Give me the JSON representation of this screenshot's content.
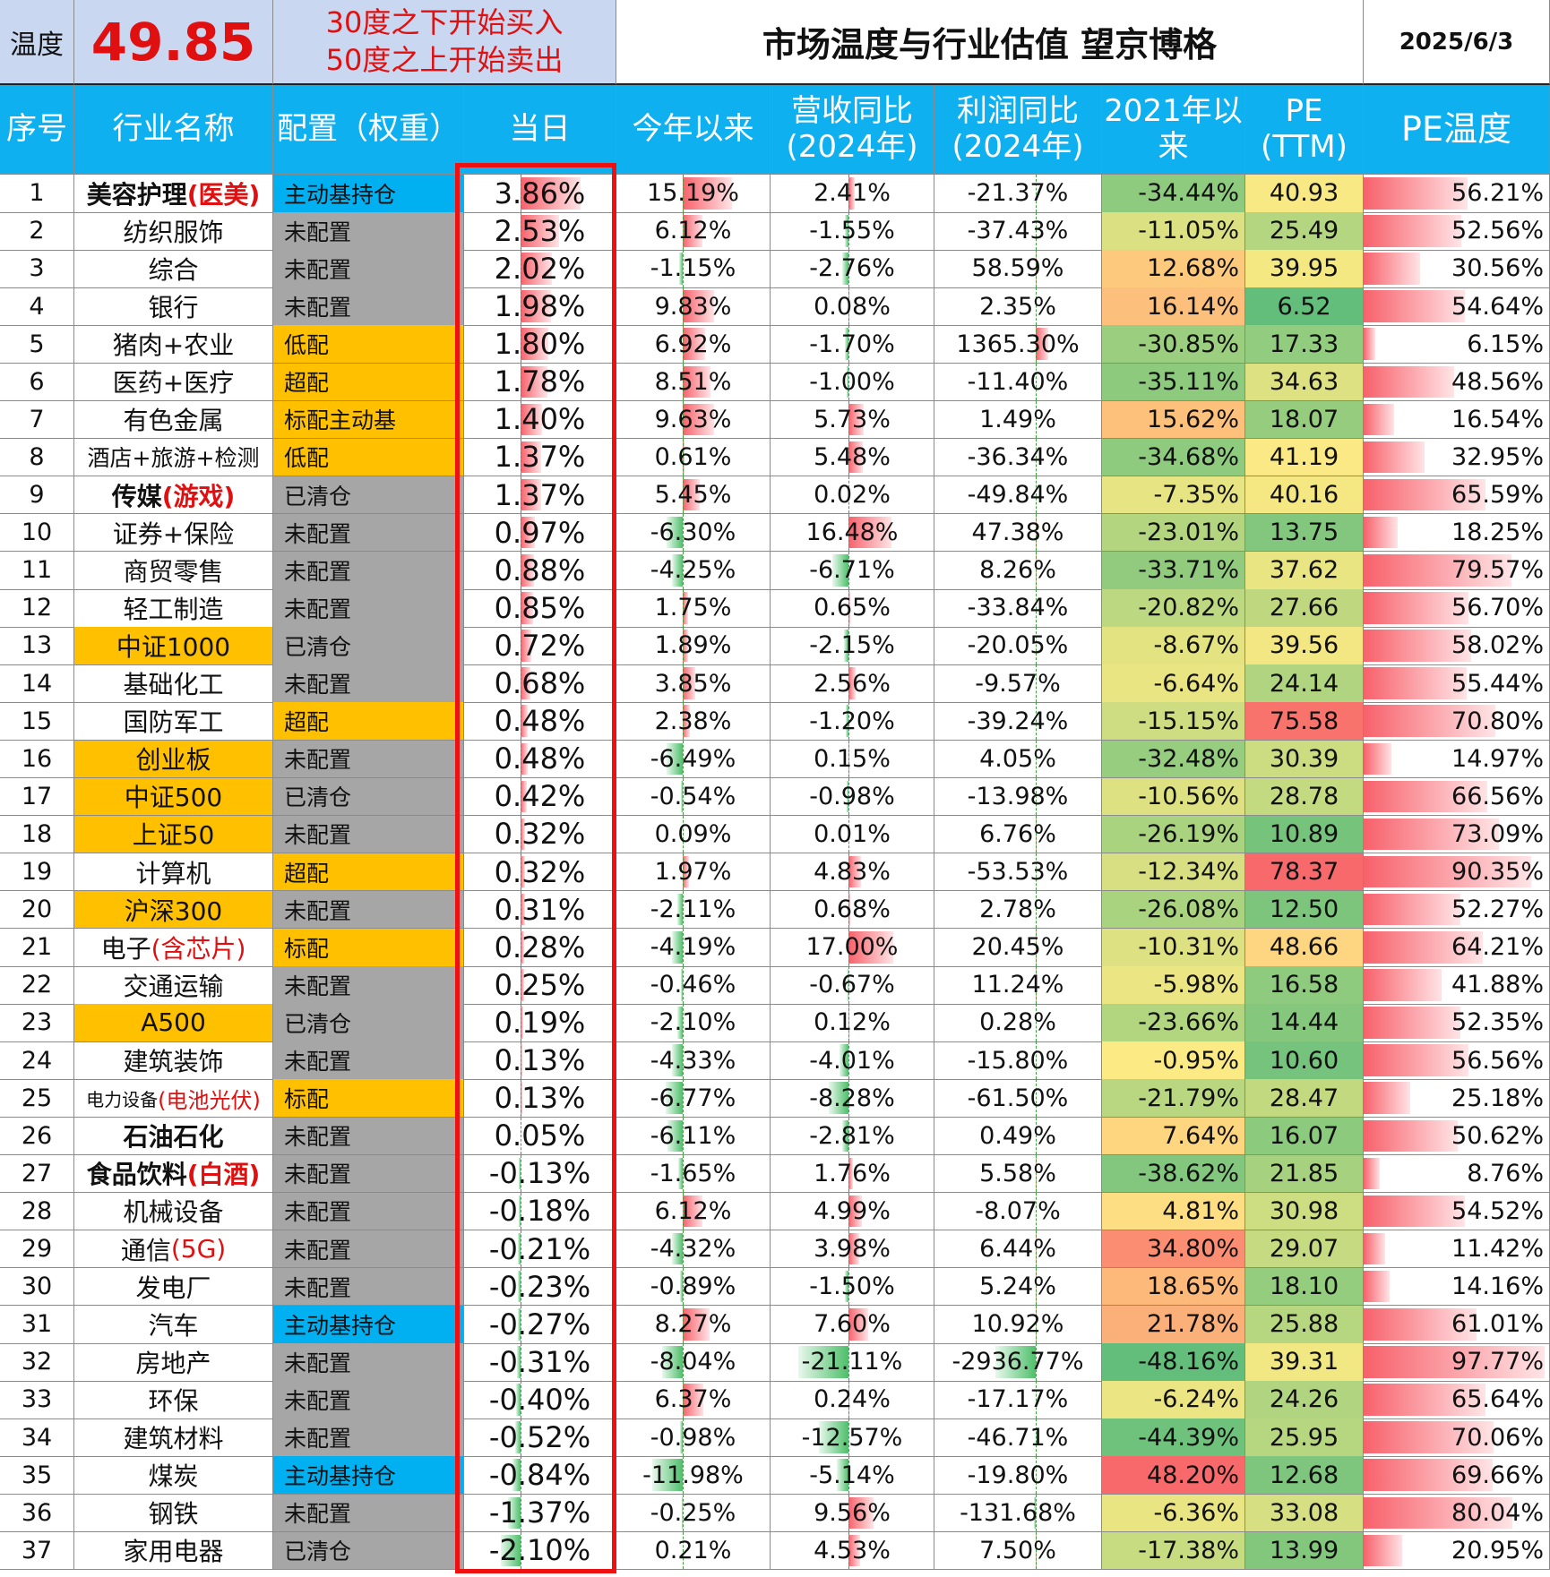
{
  "header": {
    "temp_label": "温度",
    "temp_value": "49.85",
    "rule_line1": "30度之下开始买入",
    "rule_line2": "50度之上开始卖出",
    "title": "市场温度与行业估值 望京博格",
    "date": "2025/6/3"
  },
  "columns": {
    "no": "序号",
    "name": "行业名称",
    "alloc": "配置（权重）",
    "day": "当日",
    "ytd": "今年以来",
    "rev_1": "营收同比",
    "rev_2": "(2024年)",
    "profit_1": "利润同比",
    "profit_2": "(2024年)",
    "since21_1": "2021年以",
    "since21_2": "来",
    "pe_1": "PE",
    "pe_2": "(TTM)",
    "petemp": "PE温度"
  },
  "colors": {
    "header_bg": "#0fb0f0",
    "highlight_bg": "#ffc000",
    "grey_bg": "#a6a6a6",
    "blue_bg": "#00b0f0",
    "temp_red": "#e01010",
    "frame_red": "#ee1111"
  },
  "rows": [
    {
      "no": "1",
      "name": "美容护理",
      "name_hl": "(医美)",
      "alloc": "主动基持仓",
      "alloc_c": "blue",
      "name_c": "",
      "day": "3.86%",
      "ytd": "15.19%",
      "rev": "2.41%",
      "profit": "-21.37%",
      "since21": "-34.44%",
      "pe": "40.93",
      "pet": "56.21%"
    },
    {
      "no": "2",
      "name": "纺织服饰",
      "name_hl": "",
      "alloc": "未配置",
      "alloc_c": "grey",
      "name_c": "",
      "day": "2.53%",
      "ytd": "6.12%",
      "rev": "-1.55%",
      "profit": "-37.43%",
      "since21": "-11.05%",
      "pe": "25.49",
      "pet": "52.56%"
    },
    {
      "no": "3",
      "name": "综合",
      "name_hl": "",
      "alloc": "未配置",
      "alloc_c": "grey",
      "name_c": "",
      "day": "2.02%",
      "ytd": "-1.15%",
      "rev": "-2.76%",
      "profit": "58.59%",
      "since21": "12.68%",
      "pe": "39.95",
      "pet": "30.56%"
    },
    {
      "no": "4",
      "name": "银行",
      "name_hl": "",
      "alloc": "未配置",
      "alloc_c": "grey",
      "name_c": "",
      "day": "1.98%",
      "ytd": "9.83%",
      "rev": "0.08%",
      "profit": "2.35%",
      "since21": "16.14%",
      "pe": "6.52",
      "pet": "54.64%"
    },
    {
      "no": "5",
      "name": "猪肉+农业",
      "name_hl": "",
      "alloc": "低配",
      "alloc_c": "yellow",
      "name_c": "",
      "day": "1.80%",
      "ytd": "6.92%",
      "rev": "-1.70%",
      "profit": "1365.30%",
      "since21": "-30.85%",
      "pe": "17.33",
      "pet": "6.15%"
    },
    {
      "no": "6",
      "name": "医药+医疗",
      "name_hl": "",
      "alloc": "超配",
      "alloc_c": "yellow",
      "name_c": "",
      "day": "1.78%",
      "ytd": "8.51%",
      "rev": "-1.00%",
      "profit": "-11.40%",
      "since21": "-35.11%",
      "pe": "34.63",
      "pet": "48.56%"
    },
    {
      "no": "7",
      "name": "有色金属",
      "name_hl": "",
      "alloc": "标配主动基",
      "alloc_c": "yellow",
      "name_c": "",
      "day": "1.40%",
      "ytd": "9.63%",
      "rev": "5.73%",
      "profit": "1.49%",
      "since21": "15.62%",
      "pe": "18.07",
      "pet": "16.54%"
    },
    {
      "no": "8",
      "name": "酒店+旅游+检测",
      "name_hl": "",
      "alloc": "低配",
      "alloc_c": "yellow",
      "name_c": "",
      "day": "1.37%",
      "ytd": "0.61%",
      "rev": "5.48%",
      "profit": "-36.34%",
      "since21": "-34.68%",
      "pe": "41.19",
      "pet": "32.95%"
    },
    {
      "no": "9",
      "name": "传媒",
      "name_hl": "(游戏)",
      "alloc": "已清仓",
      "alloc_c": "grey",
      "name_c": "",
      "day": "1.37%",
      "ytd": "5.45%",
      "rev": "0.02%",
      "profit": "-49.84%",
      "since21": "-7.35%",
      "pe": "40.16",
      "pet": "65.59%"
    },
    {
      "no": "10",
      "name": "证券+保险",
      "name_hl": "",
      "alloc": "未配置",
      "alloc_c": "grey",
      "name_c": "",
      "day": "0.97%",
      "ytd": "-6.30%",
      "rev": "16.48%",
      "profit": "47.38%",
      "since21": "-23.01%",
      "pe": "13.75",
      "pet": "18.25%"
    },
    {
      "no": "11",
      "name": "商贸零售",
      "name_hl": "",
      "alloc": "未配置",
      "alloc_c": "grey",
      "name_c": "",
      "day": "0.88%",
      "ytd": "-4.25%",
      "rev": "-6.71%",
      "profit": "8.26%",
      "since21": "-33.71%",
      "pe": "37.62",
      "pet": "79.57%"
    },
    {
      "no": "12",
      "name": "轻工制造",
      "name_hl": "",
      "alloc": "未配置",
      "alloc_c": "grey",
      "name_c": "",
      "day": "0.85%",
      "ytd": "1.75%",
      "rev": "0.65%",
      "profit": "-33.84%",
      "since21": "-20.82%",
      "pe": "27.66",
      "pet": "56.70%"
    },
    {
      "no": "13",
      "name": "中证1000",
      "name_hl": "",
      "alloc": "已清仓",
      "alloc_c": "grey",
      "name_c": "yellow",
      "day": "0.72%",
      "ytd": "1.89%",
      "rev": "-2.15%",
      "profit": "-20.05%",
      "since21": "-8.67%",
      "pe": "39.56",
      "pet": "58.02%"
    },
    {
      "no": "14",
      "name": "基础化工",
      "name_hl": "",
      "alloc": "未配置",
      "alloc_c": "grey",
      "name_c": "",
      "day": "0.68%",
      "ytd": "3.85%",
      "rev": "2.56%",
      "profit": "-9.57%",
      "since21": "-6.64%",
      "pe": "24.14",
      "pet": "55.44%"
    },
    {
      "no": "15",
      "name": "国防军工",
      "name_hl": "",
      "alloc": "超配",
      "alloc_c": "yellow",
      "name_c": "",
      "day": "0.48%",
      "ytd": "2.38%",
      "rev": "-1.20%",
      "profit": "-39.24%",
      "since21": "-15.15%",
      "pe": "75.58",
      "pet": "70.80%"
    },
    {
      "no": "16",
      "name": "创业板",
      "name_hl": "",
      "alloc": "未配置",
      "alloc_c": "grey",
      "name_c": "yellow",
      "day": "0.48%",
      "ytd": "-6.49%",
      "rev": "0.15%",
      "profit": "4.05%",
      "since21": "-32.48%",
      "pe": "30.39",
      "pet": "14.97%"
    },
    {
      "no": "17",
      "name": "中证500",
      "name_hl": "",
      "alloc": "已清仓",
      "alloc_c": "grey",
      "name_c": "yellow",
      "day": "0.42%",
      "ytd": "-0.54%",
      "rev": "-0.98%",
      "profit": "-13.98%",
      "since21": "-10.56%",
      "pe": "28.78",
      "pet": "66.56%"
    },
    {
      "no": "18",
      "name": "上证50",
      "name_hl": "",
      "alloc": "未配置",
      "alloc_c": "grey",
      "name_c": "yellow",
      "day": "0.32%",
      "ytd": "0.09%",
      "rev": "0.01%",
      "profit": "6.76%",
      "since21": "-26.19%",
      "pe": "10.89",
      "pet": "73.09%"
    },
    {
      "no": "19",
      "name": "计算机",
      "name_hl": "",
      "alloc": "超配",
      "alloc_c": "yellow",
      "name_c": "",
      "day": "0.32%",
      "ytd": "1.97%",
      "rev": "4.83%",
      "profit": "-53.53%",
      "since21": "-12.34%",
      "pe": "78.37",
      "pet": "90.35%"
    },
    {
      "no": "20",
      "name": "沪深300",
      "name_hl": "",
      "alloc": "未配置",
      "alloc_c": "grey",
      "name_c": "yellow",
      "day": "0.31%",
      "ytd": "-2.11%",
      "rev": "0.68%",
      "profit": "2.78%",
      "since21": "-26.08%",
      "pe": "12.50",
      "pet": "52.27%"
    },
    {
      "no": "21",
      "name": "电子",
      "name_hl": "(含芯片)",
      "alloc": "标配",
      "alloc_c": "yellow",
      "name_c": "",
      "day": "0.28%",
      "ytd": "-4.19%",
      "rev": "17.00%",
      "profit": "20.45%",
      "since21": "-10.31%",
      "pe": "48.66",
      "pet": "64.21%"
    },
    {
      "no": "22",
      "name": "交通运输",
      "name_hl": "",
      "alloc": "未配置",
      "alloc_c": "grey",
      "name_c": "",
      "day": "0.25%",
      "ytd": "-0.46%",
      "rev": "-0.67%",
      "profit": "11.24%",
      "since21": "-5.98%",
      "pe": "16.58",
      "pet": "41.88%"
    },
    {
      "no": "23",
      "name": "A500",
      "name_hl": "",
      "alloc": "已清仓",
      "alloc_c": "grey",
      "name_c": "yellow",
      "day": "0.19%",
      "ytd": "-2.10%",
      "rev": "0.12%",
      "profit": "0.28%",
      "since21": "-23.66%",
      "pe": "14.44",
      "pet": "52.35%"
    },
    {
      "no": "24",
      "name": "建筑装饰",
      "name_hl": "",
      "alloc": "未配置",
      "alloc_c": "grey",
      "name_c": "",
      "day": "0.13%",
      "ytd": "-4.33%",
      "rev": "-4.01%",
      "profit": "-15.80%",
      "since21": "-0.95%",
      "pe": "10.60",
      "pet": "56.56%"
    },
    {
      "no": "25",
      "name": "电力设备",
      "name_hl": "(电池光伏)",
      "alloc": "标配",
      "alloc_c": "yellow",
      "name_c": "",
      "day": "0.13%",
      "ytd": "-6.77%",
      "rev": "-8.28%",
      "profit": "-61.50%",
      "since21": "-21.79%",
      "pe": "28.47",
      "pet": "25.18%"
    },
    {
      "no": "26",
      "name": "石油石化",
      "name_hl": "",
      "alloc": "未配置",
      "alloc_c": "grey",
      "name_c": "",
      "day": "0.05%",
      "ytd": "-6.11%",
      "rev": "-2.81%",
      "profit": "0.49%",
      "since21": "7.64%",
      "pe": "16.07",
      "pet": "50.62%"
    },
    {
      "no": "27",
      "name": "食品饮料",
      "name_hl": "(白酒)",
      "alloc": "未配置",
      "alloc_c": "grey",
      "name_c": "",
      "day": "-0.13%",
      "ytd": "-1.65%",
      "rev": "1.76%",
      "profit": "5.58%",
      "since21": "-38.62%",
      "pe": "21.85",
      "pet": "8.76%"
    },
    {
      "no": "28",
      "name": "机械设备",
      "name_hl": "",
      "alloc": "未配置",
      "alloc_c": "grey",
      "name_c": "",
      "day": "-0.18%",
      "ytd": "6.12%",
      "rev": "4.99%",
      "profit": "-8.07%",
      "since21": "4.81%",
      "pe": "30.98",
      "pet": "54.52%"
    },
    {
      "no": "29",
      "name": "通信",
      "name_hl": "(5G)",
      "alloc": "未配置",
      "alloc_c": "grey",
      "name_c": "",
      "day": "-0.21%",
      "ytd": "-4.32%",
      "rev": "3.98%",
      "profit": "6.44%",
      "since21": "34.80%",
      "pe": "29.07",
      "pet": "11.42%"
    },
    {
      "no": "30",
      "name": "发电厂",
      "name_hl": "",
      "alloc": "未配置",
      "alloc_c": "grey",
      "name_c": "",
      "day": "-0.23%",
      "ytd": "-0.89%",
      "rev": "-1.50%",
      "profit": "5.24%",
      "since21": "18.65%",
      "pe": "18.10",
      "pet": "14.16%"
    },
    {
      "no": "31",
      "name": "汽车",
      "name_hl": "",
      "alloc": "主动基持仓",
      "alloc_c": "blue",
      "name_c": "",
      "day": "-0.27%",
      "ytd": "8.27%",
      "rev": "7.60%",
      "profit": "10.92%",
      "since21": "21.78%",
      "pe": "25.88",
      "pet": "61.01%"
    },
    {
      "no": "32",
      "name": "房地产",
      "name_hl": "",
      "alloc": "未配置",
      "alloc_c": "grey",
      "name_c": "",
      "day": "-0.31%",
      "ytd": "-8.04%",
      "rev": "-21.11%",
      "profit": "-2936.77%",
      "since21": "-48.16%",
      "pe": "39.31",
      "pet": "97.77%"
    },
    {
      "no": "33",
      "name": "环保",
      "name_hl": "",
      "alloc": "未配置",
      "alloc_c": "grey",
      "name_c": "",
      "day": "-0.40%",
      "ytd": "6.37%",
      "rev": "0.24%",
      "profit": "-17.17%",
      "since21": "-6.24%",
      "pe": "24.26",
      "pet": "65.64%"
    },
    {
      "no": "34",
      "name": "建筑材料",
      "name_hl": "",
      "alloc": "未配置",
      "alloc_c": "grey",
      "name_c": "",
      "day": "-0.52%",
      "ytd": "-0.98%",
      "rev": "-12.57%",
      "profit": "-46.71%",
      "since21": "-44.39%",
      "pe": "25.95",
      "pet": "70.06%"
    },
    {
      "no": "35",
      "name": "煤炭",
      "name_hl": "",
      "alloc": "主动基持仓",
      "alloc_c": "blue",
      "name_c": "",
      "day": "-0.84%",
      "ytd": "-11.98%",
      "rev": "-5.14%",
      "profit": "-19.80%",
      "since21": "48.20%",
      "pe": "12.68",
      "pet": "69.66%"
    },
    {
      "no": "36",
      "name": "钢铁",
      "name_hl": "",
      "alloc": "未配置",
      "alloc_c": "grey",
      "name_c": "",
      "day": "-1.37%",
      "ytd": "-0.25%",
      "rev": "9.56%",
      "profit": "-131.68%",
      "since21": "-6.36%",
      "pe": "33.08",
      "pet": "80.04%"
    },
    {
      "no": "37",
      "name": "家用电器",
      "name_hl": "",
      "alloc": "已清仓",
      "alloc_c": "grey",
      "name_c": "",
      "day": "-2.10%",
      "ytd": "0.21%",
      "rev": "4.53%",
      "profit": "7.50%",
      "since21": "-17.38%",
      "pe": "13.99",
      "pet": "20.95%"
    }
  ]
}
